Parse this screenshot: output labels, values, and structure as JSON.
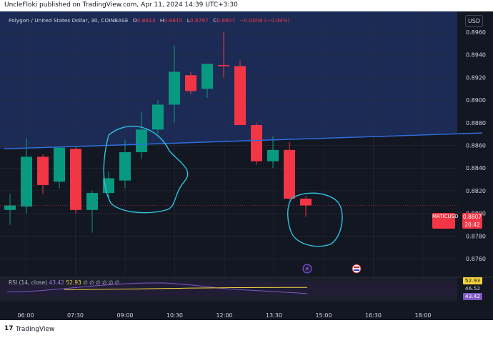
{
  "header": {
    "publisher_text": "UncleFloki published on TradingView.com, Apr 11, 2024 14:39 UTC+3:30"
  },
  "footer": {
    "brand": "TradingView",
    "logo_text": "17"
  },
  "currency_button": "USD",
  "legend": {
    "symbol": "Polygon / United States Dollar, 30, COINBASE",
    "o_label": "O",
    "o_value": "0.8813",
    "h_label": "H",
    "h_value": "0.8815",
    "l_label": "L",
    "l_value": "0.8797",
    "c_label": "C",
    "c_value": "0.8807",
    "change": "−0.0008 (−0.09%)"
  },
  "price_tag": {
    "symbol": "MATICUSD",
    "price": "0.8807",
    "countdown": "20:42"
  },
  "rsi": {
    "label": "RSI (14, close)",
    "rsi_value": "43.42",
    "ma_value": "52.93",
    "placeholders": "∅ ∅ ∅ ∅ ∅ ∅",
    "axis_top": "52.93",
    "axis_mid": "46.52",
    "axis_bot": "43.42",
    "values": [
      46,
      46.5,
      47,
      48,
      49.5,
      51,
      52.5,
      54,
      55.5,
      56.8,
      58,
      58.8,
      59.5,
      59.8,
      60,
      59,
      57.5,
      56,
      54,
      52,
      50.5,
      49.5,
      48.5,
      47.5,
      46.5,
      45.5,
      44.5,
      43.42
    ],
    "ma_values": [
      49.5,
      49.6,
      49.8,
      50,
      50.2,
      50.4,
      50.6,
      50.9,
      51.1,
      51.4,
      51.6,
      51.9,
      52.1,
      52.3,
      52.5,
      52.6,
      52.7,
      52.8,
      52.85,
      52.9,
      52.92,
      52.93
    ]
  },
  "colors": {
    "up": "#089981",
    "down": "#f23645",
    "bg": "#131722",
    "shade": "#1c2b55",
    "trendline": "#2e6fe0",
    "circles": "#2fc3e0",
    "rsi": "#7e57c2",
    "rsi_ma": "#f5d33c"
  },
  "chart_data": {
    "type": "candlestick",
    "symbol": "Polygon / United States Dollar",
    "interval": "30",
    "exchange": "COINBASE",
    "y_ticks": [
      0.876,
      0.878,
      0.88,
      0.882,
      0.884,
      0.886,
      0.888,
      0.89,
      0.892,
      0.894,
      0.896
    ],
    "y_tick_labels": [
      "0.8760",
      "0.8780",
      "0.8800",
      "0.8820",
      "0.8840",
      "0.8860",
      "0.8880",
      "0.8900",
      "0.8920",
      "0.8940",
      "0.8960"
    ],
    "ylim": [
      0.8752,
      0.8992
    ],
    "x_ticks": [
      "06:00",
      "07:30",
      "09:00",
      "10:30",
      "12:00",
      "13:30",
      "15:00",
      "16:30",
      "18:00"
    ],
    "candles": [
      {
        "o": 0.8803,
        "h": 0.8817,
        "l": 0.879,
        "c": 0.8807
      },
      {
        "o": 0.8806,
        "h": 0.8866,
        "l": 0.88,
        "c": 0.885
      },
      {
        "o": 0.885,
        "h": 0.8852,
        "l": 0.8817,
        "c": 0.8825
      },
      {
        "o": 0.8828,
        "h": 0.8859,
        "l": 0.8822,
        "c": 0.8858
      },
      {
        "o": 0.8857,
        "h": 0.8859,
        "l": 0.88,
        "c": 0.8803
      },
      {
        "o": 0.8803,
        "h": 0.882,
        "l": 0.8783,
        "c": 0.8818
      },
      {
        "o": 0.8818,
        "h": 0.8837,
        "l": 0.8813,
        "c": 0.8831
      },
      {
        "o": 0.8829,
        "h": 0.8865,
        "l": 0.8822,
        "c": 0.8854
      },
      {
        "o": 0.8854,
        "h": 0.889,
        "l": 0.8848,
        "c": 0.8874
      },
      {
        "o": 0.8874,
        "h": 0.89,
        "l": 0.887,
        "c": 0.8896
      },
      {
        "o": 0.8896,
        "h": 0.8948,
        "l": 0.888,
        "c": 0.8925
      },
      {
        "o": 0.8922,
        "h": 0.8925,
        "l": 0.8905,
        "c": 0.8908
      },
      {
        "o": 0.891,
        "h": 0.8932,
        "l": 0.8902,
        "c": 0.8932
      },
      {
        "o": 0.8931,
        "h": 0.896,
        "l": 0.892,
        "c": 0.893
      },
      {
        "o": 0.893,
        "h": 0.8935,
        "l": 0.8878,
        "c": 0.8878
      },
      {
        "o": 0.8878,
        "h": 0.888,
        "l": 0.8843,
        "c": 0.8846
      },
      {
        "o": 0.8846,
        "h": 0.8868,
        "l": 0.884,
        "c": 0.8856
      },
      {
        "o": 0.8856,
        "h": 0.8863,
        "l": 0.8812,
        "c": 0.8813
      },
      {
        "o": 0.8813,
        "h": 0.8815,
        "l": 0.8797,
        "c": 0.8807
      }
    ],
    "time_for_candle": [
      "06:00",
      "06:30",
      "07:00",
      "07:30",
      "08:00",
      "08:30",
      "09:00",
      "09:30",
      "10:00",
      "10:30",
      "11:00",
      "11:30",
      "12:00",
      "12:30",
      "13:00",
      "13:30",
      "14:00",
      "14:30",
      "15:00"
    ],
    "trendline": {
      "from_value": 0.8857,
      "to_value": 0.8871
    },
    "shaded_zone": "above trendline",
    "last_price": 0.8807
  }
}
